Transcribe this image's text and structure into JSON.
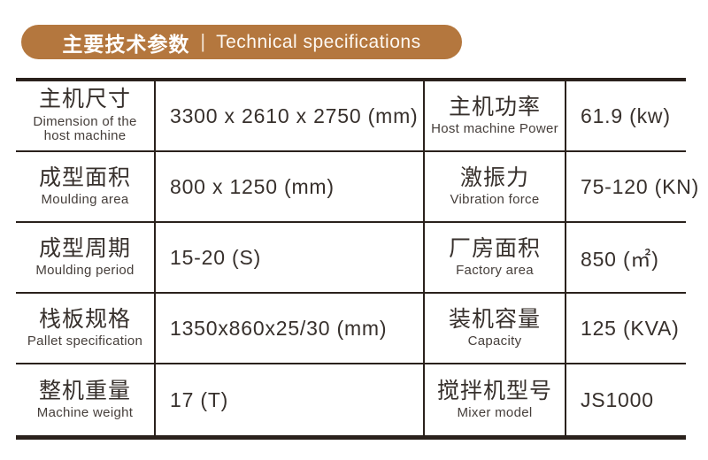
{
  "header": {
    "title_zh": "主要技术参数",
    "separator": "|",
    "title_en": "Technical specifications",
    "bg_color": "#b4773e",
    "text_color": "#ffffff"
  },
  "table": {
    "border_color": "#2a211c",
    "text_color": "#37302c",
    "rows": [
      {
        "left": {
          "zh": "主机尺寸",
          "en": "Dimension of the host machine",
          "value": "3300 x 2610 x 2750 (mm)"
        },
        "right": {
          "zh": "主机功率",
          "en": "Host machine Power",
          "value": "61.9 (kw)"
        }
      },
      {
        "left": {
          "zh": "成型面积",
          "en": "Moulding area",
          "value": "800 x 1250 (mm)"
        },
        "right": {
          "zh": "激振力",
          "en": "Vibration force",
          "value": "75-120 (KN)"
        }
      },
      {
        "left": {
          "zh": "成型周期",
          "en": "Moulding period",
          "value": "15-20 (S)"
        },
        "right": {
          "zh": "厂房面积",
          "en": "Factory area",
          "value": "850 (㎡)"
        }
      },
      {
        "left": {
          "zh": "栈板规格",
          "en": "Pallet specification",
          "value": "1350x860x25/30 (mm)"
        },
        "right": {
          "zh": "装机容量",
          "en": "Capacity",
          "value": "125 (KVA)"
        }
      },
      {
        "left": {
          "zh": "整机重量",
          "en": "Machine weight",
          "value": "17 (T)"
        },
        "right": {
          "zh": "搅拌机型号",
          "en": "Mixer model",
          "value": "JS1000"
        }
      }
    ]
  }
}
